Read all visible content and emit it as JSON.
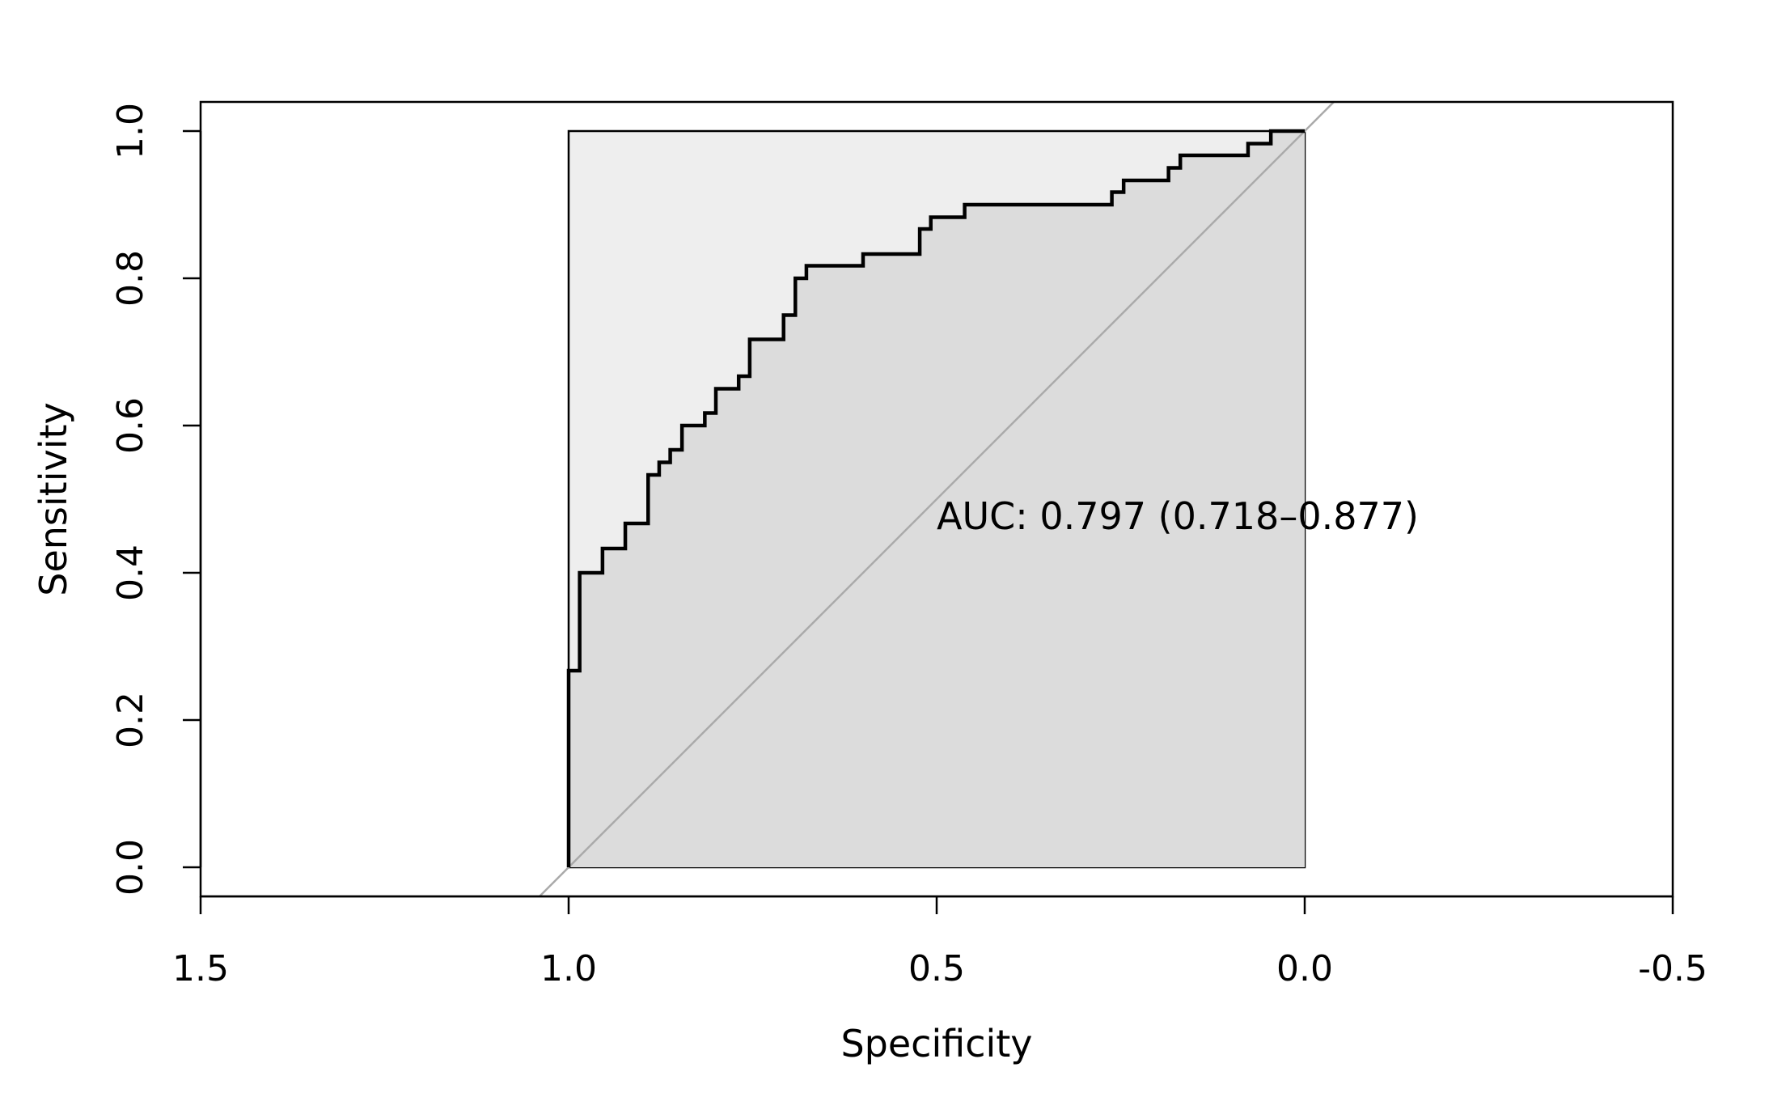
{
  "chart_data": {
    "type": "line",
    "title": "",
    "xlabel": "Specificity",
    "ylabel": "Sensitivity",
    "xlim": [
      1.5,
      -0.5
    ],
    "ylim": [
      0,
      1
    ],
    "x_reversed": true,
    "xticks": [
      "1.5",
      "1.0",
      "0.5",
      "0.0",
      "-0.5"
    ],
    "yticks": [
      "0.0",
      "0.2",
      "0.4",
      "0.6",
      "0.8",
      "1.0"
    ],
    "grid": false,
    "legend": "none",
    "annotation": {
      "text": "AUC: 0.797 (0.718–0.877)",
      "x": 0.5,
      "y": 0.477
    },
    "ci_region": {
      "specificity": [
        0.0,
        1.0
      ],
      "sensitivity": [
        0.0,
        1.0
      ]
    },
    "reference_line": {
      "from": [
        1.04,
        -0.04
      ],
      "to": [
        -0.04,
        1.04
      ]
    },
    "colors": {
      "roc_curve": "#000000",
      "auc_fill": "#dcdcdc",
      "ci_fill": "#eeeeee",
      "reference_line": "#aaaaaa"
    },
    "series": [
      {
        "specificity": [
          1.0,
          1.0,
          0.985,
          0.985,
          0.954,
          0.954,
          0.923,
          0.923,
          0.892,
          0.892,
          0.877,
          0.877,
          0.862,
          0.862,
          0.846,
          0.846,
          0.815,
          0.815,
          0.8,
          0.8,
          0.769,
          0.769,
          0.754,
          0.754,
          0.708,
          0.708,
          0.692,
          0.692,
          0.677,
          0.677,
          0.6,
          0.6,
          0.523,
          0.523,
          0.508,
          0.508,
          0.462,
          0.462,
          0.262,
          0.262,
          0.246,
          0.246,
          0.185,
          0.185,
          0.169,
          0.169,
          0.077,
          0.077,
          0.046,
          0.046,
          0.0
        ],
        "sensitivity": [
          0.0,
          0.267,
          0.267,
          0.4,
          0.4,
          0.433,
          0.433,
          0.467,
          0.467,
          0.533,
          0.533,
          0.55,
          0.55,
          0.567,
          0.567,
          0.6,
          0.6,
          0.617,
          0.617,
          0.65,
          0.65,
          0.667,
          0.667,
          0.717,
          0.717,
          0.75,
          0.75,
          0.8,
          0.8,
          0.817,
          0.817,
          0.833,
          0.833,
          0.867,
          0.867,
          0.883,
          0.883,
          0.9,
          0.9,
          0.917,
          0.917,
          0.933,
          0.933,
          0.95,
          0.95,
          0.967,
          0.967,
          0.983,
          0.983,
          1.0,
          1.0
        ]
      }
    ]
  }
}
